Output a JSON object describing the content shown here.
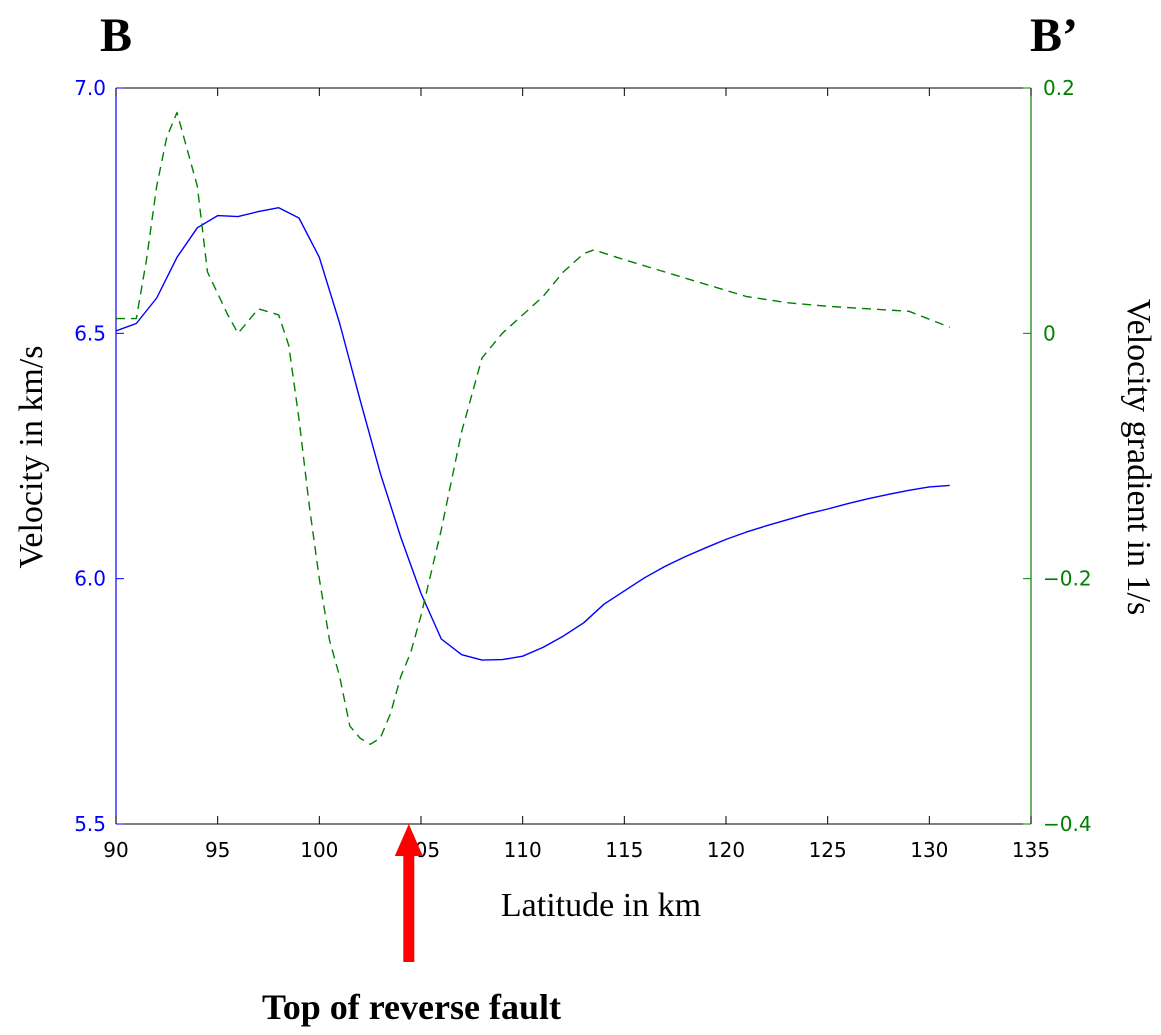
{
  "corner_labels": {
    "left": "B",
    "right": "B’"
  },
  "annotation": {
    "text": "Top of reverse fault",
    "at_x": 104.4,
    "arrow_color": "#ff0000"
  },
  "chart_data": {
    "type": "line",
    "xlabel": "Latitude in km",
    "ylabel_left": "Velocity in km/s",
    "ylabel_right": "Velocity gradient in 1/s",
    "xlim": [
      90,
      135
    ],
    "ylim_left": [
      5.5,
      7.0
    ],
    "ylim_right": [
      -0.4,
      0.2
    ],
    "x_ticks": [
      90,
      95,
      100,
      105,
      110,
      115,
      120,
      125,
      130,
      135
    ],
    "x_tick_labels": [
      "90",
      "95",
      "100",
      "105",
      "110",
      "115",
      "120",
      "125",
      "130",
      "135"
    ],
    "y_left_ticks": [
      5.5,
      6.0,
      6.5,
      7.0
    ],
    "y_left_tick_labels": [
      "5.5",
      "6.0",
      "6.5",
      "7.0"
    ],
    "y_right_ticks": [
      -0.4,
      -0.2,
      0,
      0.2
    ],
    "y_right_tick_labels": [
      "−0.4",
      "−0.2",
      "0",
      "0.2"
    ],
    "left_axis_color": "#0000ff",
    "right_axis_color": "#008000",
    "grid": false,
    "series": [
      {
        "axis": "left",
        "style": "solid",
        "color": "#0000ff",
        "x": [
          90,
          91,
          92,
          93,
          94,
          95,
          96,
          97,
          98,
          99,
          100,
          101,
          102,
          103,
          104,
          105,
          106,
          107,
          108,
          109,
          110,
          111,
          112,
          113,
          114,
          115,
          116,
          117,
          118,
          119,
          120,
          121,
          122,
          123,
          124,
          125,
          126,
          127,
          128,
          129,
          130,
          131
        ],
        "y": [
          6.505,
          6.52,
          6.572,
          6.655,
          6.715,
          6.74,
          6.738,
          6.748,
          6.756,
          6.735,
          6.655,
          6.52,
          6.365,
          6.215,
          6.085,
          5.97,
          5.877,
          5.845,
          5.834,
          5.835,
          5.842,
          5.86,
          5.883,
          5.91,
          5.948,
          5.975,
          6.002,
          6.025,
          6.045,
          6.063,
          6.08,
          6.095,
          6.108,
          6.12,
          6.132,
          6.142,
          6.153,
          6.163,
          6.172,
          6.18,
          6.187,
          6.19
        ]
      },
      {
        "axis": "right",
        "style": "dashed",
        "color": "#008000",
        "x": [
          90,
          90.5,
          91,
          91.5,
          92,
          92.5,
          93,
          94,
          94.5,
          95.5,
          96,
          96.5,
          97,
          98,
          98.5,
          99,
          99.5,
          100,
          100.5,
          101,
          101.5,
          102,
          102.5,
          103,
          103.5,
          104,
          104.5,
          105,
          106,
          107,
          108,
          109,
          110,
          111,
          112,
          113,
          113.5,
          115,
          117,
          119,
          121,
          123,
          125,
          127,
          129,
          131
        ],
        "y": [
          0.012,
          0.012,
          0.012,
          0.06,
          0.12,
          0.16,
          0.18,
          0.12,
          0.05,
          0.015,
          0.0,
          0.01,
          0.02,
          0.015,
          -0.01,
          -0.07,
          -0.14,
          -0.2,
          -0.25,
          -0.28,
          -0.32,
          -0.33,
          -0.335,
          -0.33,
          -0.31,
          -0.28,
          -0.26,
          -0.23,
          -0.16,
          -0.08,
          -0.02,
          0.0,
          0.015,
          0.03,
          0.05,
          0.065,
          0.068,
          0.06,
          0.05,
          0.04,
          0.03,
          0.025,
          0.022,
          0.02,
          0.018,
          0.005
        ]
      }
    ]
  }
}
